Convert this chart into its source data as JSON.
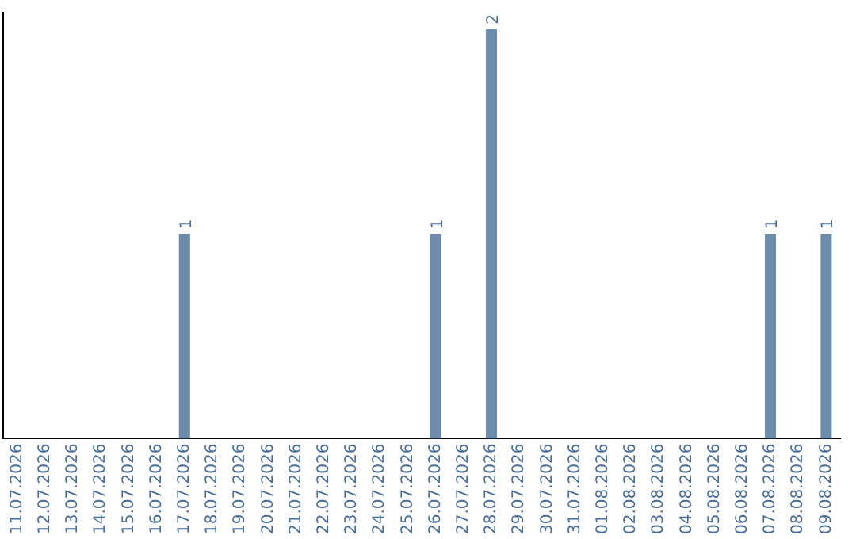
{
  "chart_data": {
    "type": "bar",
    "categories": [
      "11.07.2026",
      "12.07.2026",
      "13.07.2026",
      "14.07.2026",
      "15.07.2026",
      "16.07.2026",
      "17.07.2026",
      "18.07.2026",
      "19.07.2026",
      "20.07.2026",
      "21.07.2026",
      "22.07.2026",
      "23.07.2026",
      "24.07.2026",
      "25.07.2026",
      "26.07.2026",
      "27.07.2026",
      "28.07.2026",
      "29.07.2026",
      "30.07.2026",
      "31.07.2026",
      "01.08.2026",
      "02.08.2026",
      "03.08.2026",
      "04.08.2026",
      "05.08.2026",
      "06.08.2026",
      "07.08.2026",
      "08.08.2026",
      "09.08.2026"
    ],
    "values": [
      0,
      0,
      0,
      0,
      0,
      0,
      1,
      0,
      0,
      0,
      0,
      0,
      0,
      0,
      0,
      1,
      0,
      2,
      0,
      0,
      0,
      0,
      0,
      0,
      0,
      0,
      0,
      1,
      0,
      1
    ],
    "value_labels": [
      null,
      null,
      null,
      null,
      null,
      null,
      "1",
      null,
      null,
      null,
      null,
      null,
      null,
      null,
      null,
      "1",
      null,
      "2",
      null,
      null,
      null,
      null,
      null,
      null,
      null,
      null,
      null,
      "1",
      null,
      "1"
    ],
    "color": "#6d8cab",
    "grid": false,
    "legend": false,
    "tick_labels": "x"
  }
}
